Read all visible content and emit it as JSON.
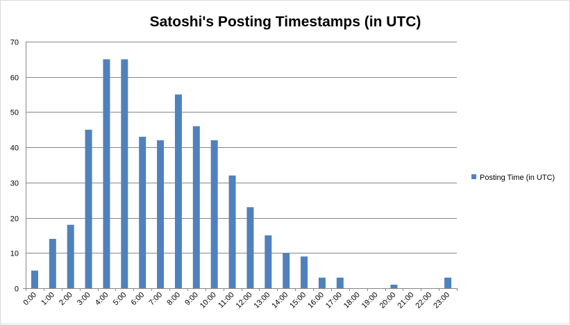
{
  "chart_data": {
    "type": "bar",
    "title": "Satoshi's Posting Timestamps (in UTC)",
    "xlabel": "",
    "ylabel": "",
    "ylim": [
      0,
      70
    ],
    "yticks": [
      0,
      10,
      20,
      30,
      40,
      50,
      60,
      70
    ],
    "grid": true,
    "legend_position": "right",
    "categories": [
      "0:00",
      "1:00",
      "2:00",
      "3:00",
      "4:00",
      "5:00",
      "6:00",
      "7:00",
      "8:00",
      "9:00",
      "10:00",
      "11:00",
      "12:00",
      "13:00",
      "14:00",
      "15:00",
      "16:00",
      "17:00",
      "18:00",
      "19:00",
      "20:00",
      "21:00",
      "22:00",
      "23:00"
    ],
    "series": [
      {
        "name": "Posting Time (in UTC)",
        "color": "#4F81BD",
        "values": [
          5,
          14,
          18,
          45,
          65,
          65,
          43,
          42,
          55,
          46,
          42,
          32,
          23,
          15,
          10,
          9,
          3,
          3,
          0,
          0,
          1,
          0,
          0,
          3
        ]
      }
    ]
  }
}
